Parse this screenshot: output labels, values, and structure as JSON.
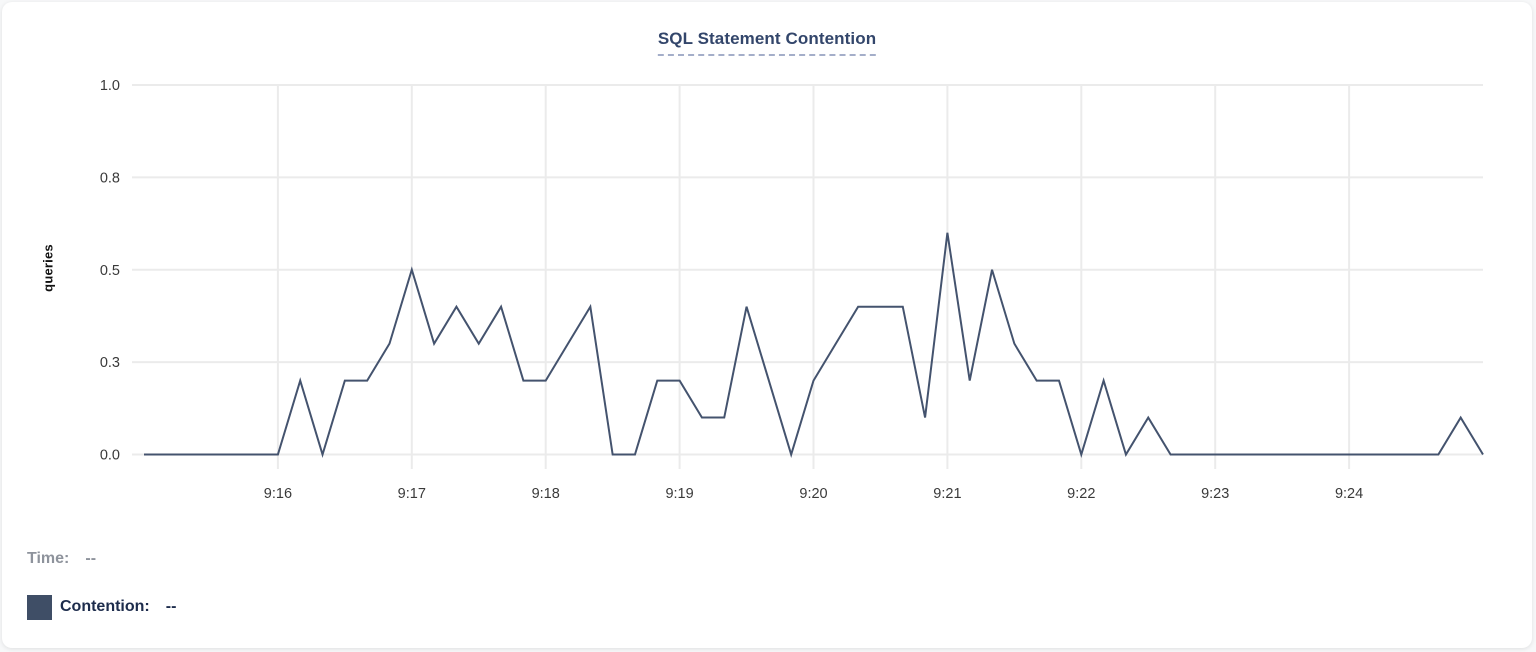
{
  "chart_data": {
    "type": "line",
    "title": "SQL Statement Contention",
    "xlabel": "",
    "ylabel": "queries",
    "ylim": [
      0,
      1
    ],
    "grid": true,
    "legend_position": "bottom-left",
    "y_ticks": {
      "values": [
        0,
        0.25,
        0.5,
        0.75,
        1.0
      ],
      "labels": [
        "0.0",
        "0.3",
        "0.5",
        "0.8",
        "1.0"
      ]
    },
    "x_ticks": [
      "9:16",
      "9:17",
      "9:18",
      "9:19",
      "9:20",
      "9:21",
      "9:22",
      "9:23",
      "9:24"
    ],
    "x_range": {
      "start": "9:15:00",
      "end": "9:25:00",
      "interval_seconds": 10
    },
    "series": [
      {
        "name": "Contention",
        "color": "#44536e",
        "values": [
          0,
          0,
          0,
          0,
          0,
          0,
          0,
          0.2,
          0,
          0.2,
          0.2,
          0.3,
          0.5,
          0.3,
          0.4,
          0.3,
          0.4,
          0.2,
          0.2,
          0.3,
          0.4,
          0,
          0,
          0.2,
          0.2,
          0.1,
          0.1,
          0.4,
          0.2,
          0,
          0.2,
          0.3,
          0.4,
          0.4,
          0.4,
          0.1,
          0.6,
          0.2,
          0.5,
          0.3,
          0.2,
          0.2,
          0,
          0.2,
          0,
          0.1,
          0,
          0,
          0,
          0,
          0,
          0,
          0,
          0,
          0,
          0,
          0,
          0,
          0,
          0.1,
          0
        ]
      }
    ]
  },
  "legend": {
    "time": {
      "label": "Time:",
      "value": "--"
    },
    "contention": {
      "label": "Contention:",
      "value": "--",
      "swatch_color": "#3f4e66"
    }
  },
  "colors": {
    "title_text": "#33466b",
    "title_underline": "#a4aec9",
    "gridline": "#ebebeb",
    "tick_label": "#3a3a3a",
    "line": "#44536e",
    "card_background": "#ffffff"
  }
}
